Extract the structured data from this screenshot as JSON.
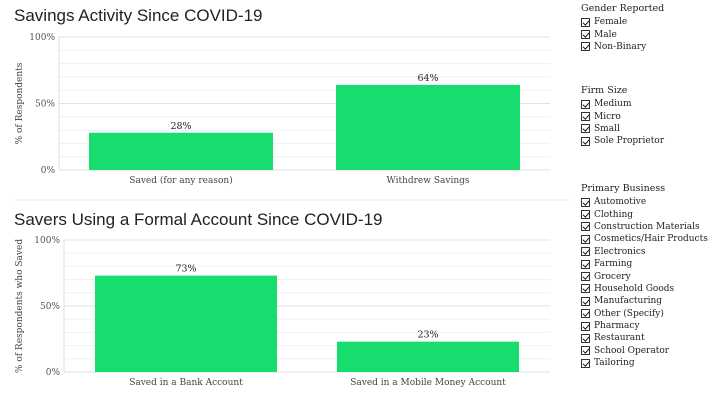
{
  "chart_data": [
    {
      "type": "bar",
      "title": "Savings Activity Since COVID-19",
      "ylabel": "% of Respondents",
      "categories": [
        "Saved (for any reason)",
        "Withdrew Savings"
      ],
      "values": [
        28,
        64
      ],
      "value_labels": [
        "28%",
        "64%"
      ],
      "ylim": [
        0,
        100
      ],
      "yticks": [
        "0%",
        "50%",
        "100%"
      ],
      "bar_color": "#17dd6e",
      "grid": true
    },
    {
      "type": "bar",
      "title": "Savers Using a Formal Account Since COVID-19",
      "ylabel": "% of Respondents who Saved",
      "categories": [
        "Saved in a Bank Account",
        "Saved in a Mobile Money Account"
      ],
      "values": [
        73,
        23
      ],
      "value_labels": [
        "73%",
        "23%"
      ],
      "ylim": [
        0,
        100
      ],
      "yticks": [
        "0%",
        "50%",
        "100%"
      ],
      "bar_color": "#17dd6e",
      "grid": true
    }
  ],
  "filters": {
    "gender": {
      "title": "Gender Reported",
      "items": [
        {
          "label": "Female",
          "checked": true
        },
        {
          "label": "Male",
          "checked": true
        },
        {
          "label": "Non-Binary",
          "checked": true
        }
      ]
    },
    "firm_size": {
      "title": "Firm Size",
      "items": [
        {
          "label": "Medium",
          "checked": true
        },
        {
          "label": "Micro",
          "checked": true
        },
        {
          "label": "Small",
          "checked": true
        },
        {
          "label": "Sole Proprietor",
          "checked": true
        }
      ]
    },
    "business": {
      "title": "Primary Business",
      "items": [
        {
          "label": "Automotive",
          "checked": true
        },
        {
          "label": "Clothing",
          "checked": true
        },
        {
          "label": "Construction Materials",
          "checked": true
        },
        {
          "label": "Cosmetics/Hair Products",
          "checked": true
        },
        {
          "label": "Electronics",
          "checked": true
        },
        {
          "label": "Farming",
          "checked": true
        },
        {
          "label": "Grocery",
          "checked": true
        },
        {
          "label": "Household Goods",
          "checked": true
        },
        {
          "label": "Manufacturing",
          "checked": true
        },
        {
          "label": "Other (Specify)",
          "checked": true
        },
        {
          "label": "Pharmacy",
          "checked": true
        },
        {
          "label": "Restaurant",
          "checked": true
        },
        {
          "label": "School Operator",
          "checked": true
        },
        {
          "label": "Tailoring",
          "checked": true
        }
      ]
    }
  }
}
